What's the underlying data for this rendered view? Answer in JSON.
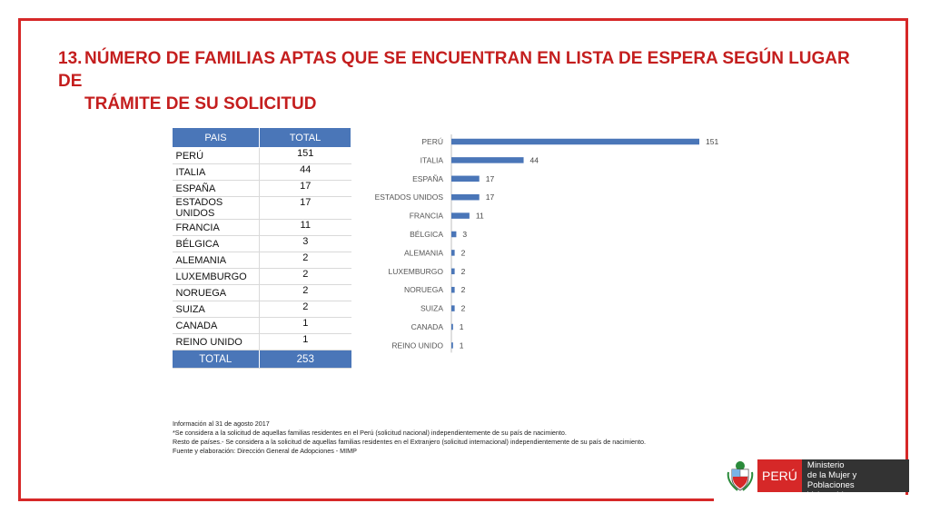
{
  "title": {
    "number": "13.",
    "line1": "NÚMERO DE FAMILIAS APTAS QUE SE ENCUENTRAN EN LISTA DE ESPERA SEGÚN LUGAR DE",
    "line2": "TRÁMITE DE SU SOLICITUD"
  },
  "table": {
    "headers": [
      "PAIS",
      "TOTAL"
    ],
    "rows": [
      {
        "pais": "PERÚ",
        "total": "151"
      },
      {
        "pais": "ITALIA",
        "total": "44"
      },
      {
        "pais": "ESPAÑA",
        "total": "17"
      },
      {
        "pais": "ESTADOS UNIDOS",
        "total": "17"
      },
      {
        "pais": "FRANCIA",
        "total": "11"
      },
      {
        "pais": "BÉLGICA",
        "total": "3"
      },
      {
        "pais": "ALEMANIA",
        "total": "2"
      },
      {
        "pais": "LUXEMBURGO",
        "total": "2"
      },
      {
        "pais": "NORUEGA",
        "total": "2"
      },
      {
        "pais": "SUIZA",
        "total": "2"
      },
      {
        "pais": "CANADA",
        "total": "1"
      },
      {
        "pais": "REINO UNIDO",
        "total": "1"
      }
    ],
    "total_label": "TOTAL",
    "total_value": "253"
  },
  "chart_data": {
    "type": "bar",
    "orientation": "horizontal",
    "categories": [
      "PERÚ",
      "ITALIA",
      "ESPAÑA",
      "ESTADOS UNIDOS",
      "FRANCIA",
      "BÉLGICA",
      "ALEMANIA",
      "LUXEMBURGO",
      "NORUEGA",
      "SUIZA",
      "CANADA",
      "REINO UNIDO"
    ],
    "values": [
      151,
      44,
      17,
      17,
      11,
      3,
      2,
      2,
      2,
      2,
      1,
      1
    ],
    "data_labels": true,
    "xlim": [
      0,
      151
    ],
    "grid": false,
    "bar_color": "#4a76b8"
  },
  "notes": [
    "Información al 31 de agosto 2017",
    "*Se considera a la solicitud de aquellas familias residentes en el Perú (solicitud nacional) independientemente de su país de nacimiento.",
    "Resto de países.- Se considera a la solicitud de aquellas familias residentes en el Extranjero (solicitud internacional) independientemente de su país de nacimiento.",
    "Fuente y elaboración: Dirección General de Adopciones - MIMP"
  ],
  "logo": {
    "country": "PERÚ",
    "ministry_line1": "Ministerio",
    "ministry_line2": "de la Mujer y",
    "ministry_line3": "Poblaciones Vulnerables"
  },
  "colors": {
    "frame": "#d62828",
    "title": "#c41e1e",
    "accent": "#4a76b8"
  }
}
